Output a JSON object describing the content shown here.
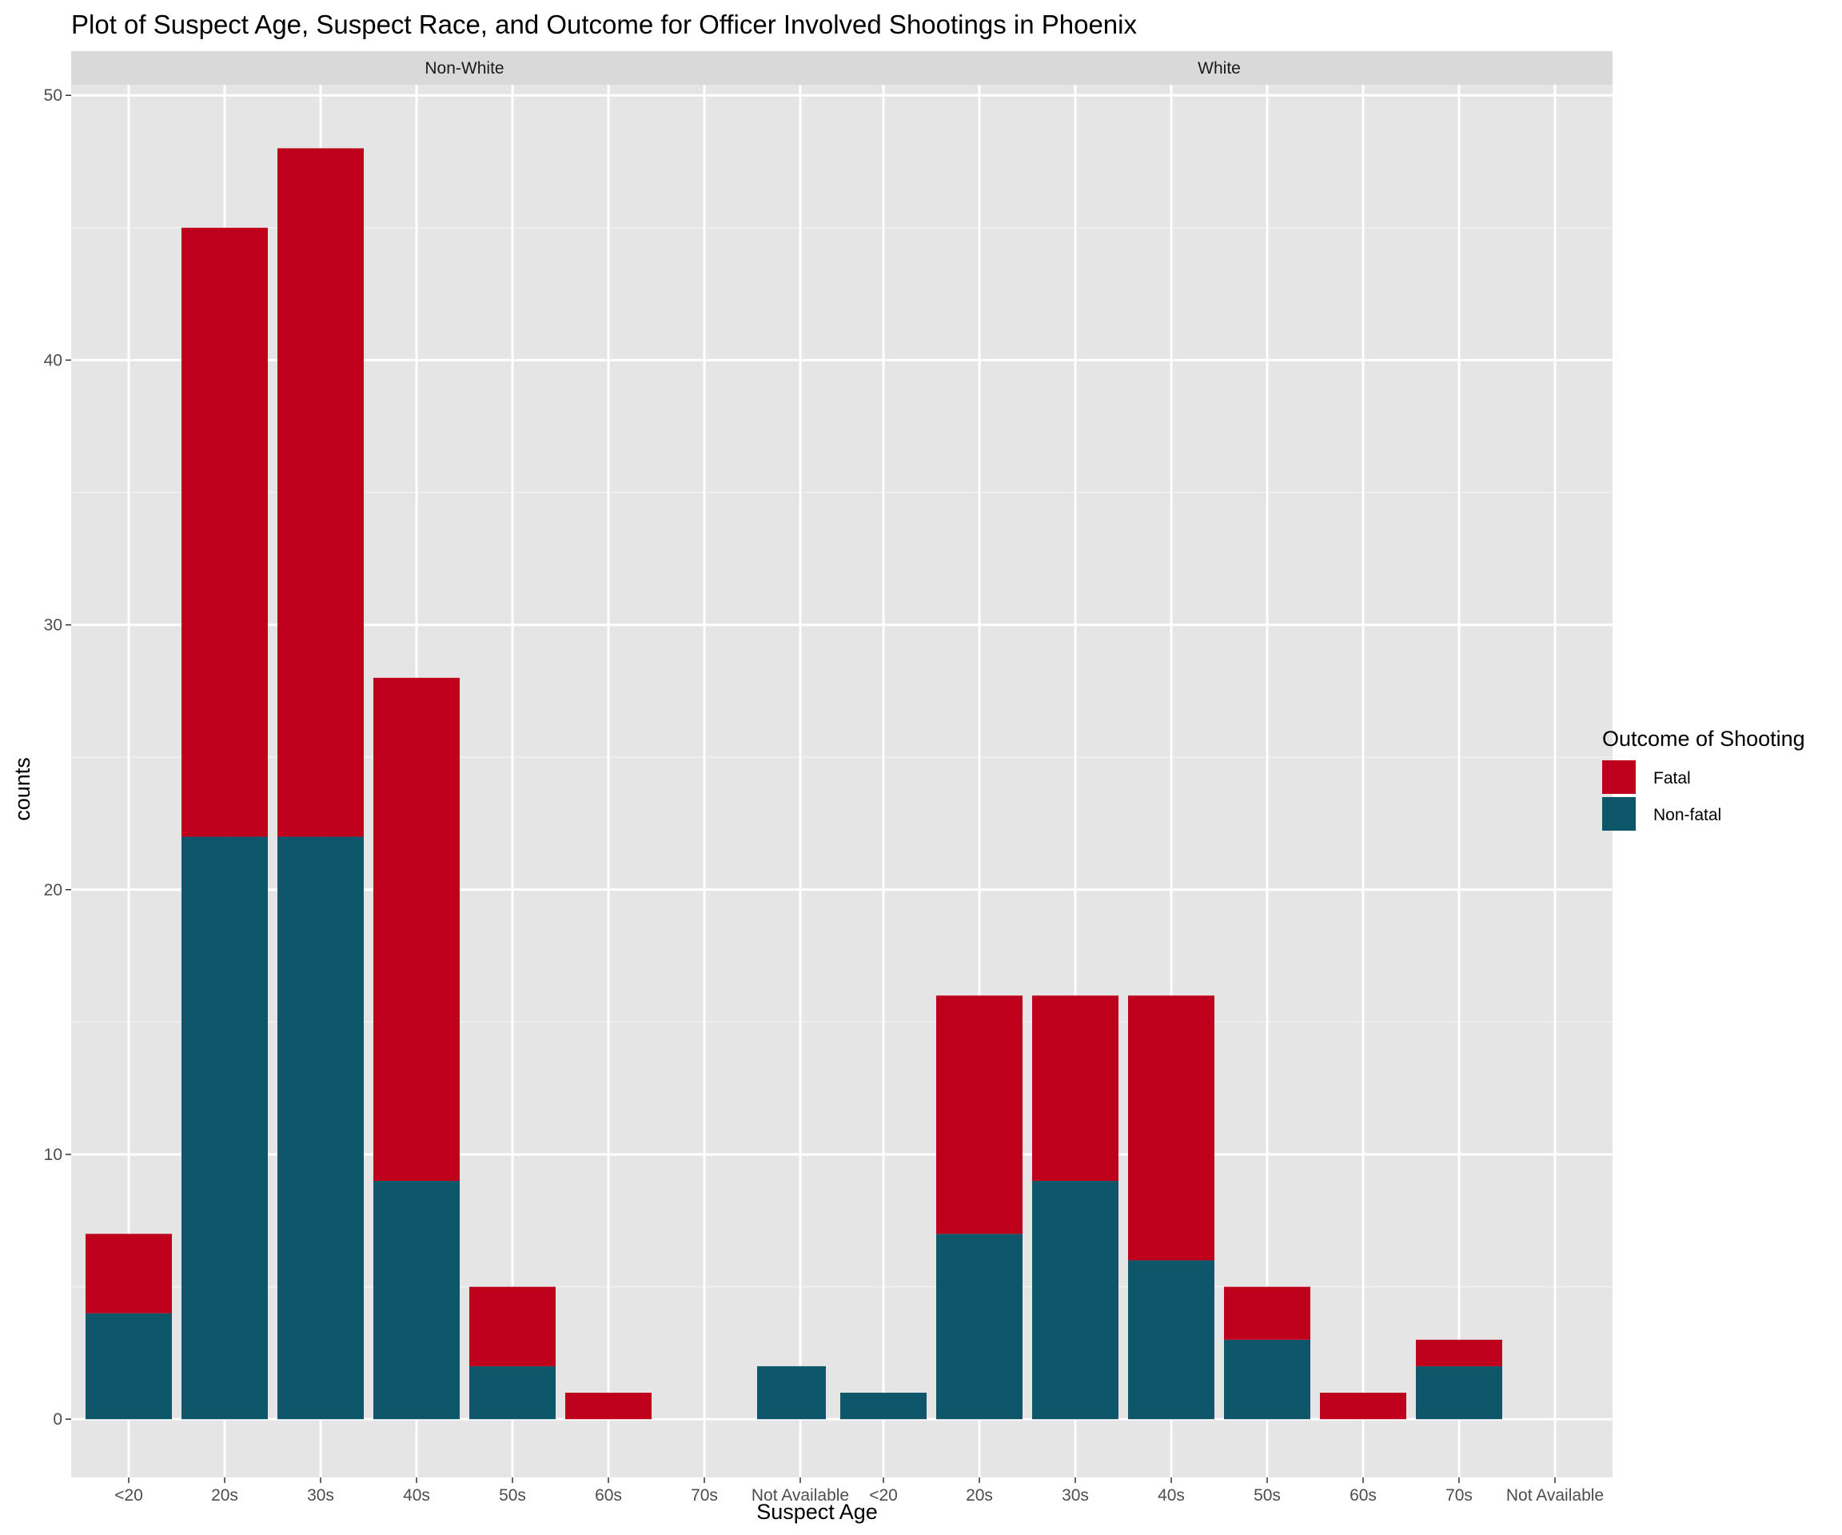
{
  "chart_data": {
    "type": "bar",
    "stacked": true,
    "title": "Plot of Suspect Age, Suspect Race, and Outcome for Officer Involved Shootings in Phoenix",
    "xlabel": "Suspect Age",
    "ylabel": "counts",
    "ylim": [
      -2.2,
      50.4
    ],
    "yticks": [
      0,
      10,
      20,
      30,
      40,
      50
    ],
    "grid": true,
    "categories": [
      "<20",
      "20s",
      "30s",
      "40s",
      "50s",
      "60s",
      "70s",
      "Not Available"
    ],
    "legend": {
      "title": "Outcome of Shooting",
      "position": "right",
      "entries": [
        {
          "label": "Fatal",
          "color": "#BE001C"
        },
        {
          "label": "Non-fatal",
          "color": "#0E566A"
        }
      ]
    },
    "facets": [
      {
        "label": "Non-White",
        "series": [
          {
            "name": "Non-fatal",
            "values": [
              4,
              22,
              22,
              9,
              2,
              0,
              0,
              2
            ]
          },
          {
            "name": "Fatal",
            "values": [
              3,
              23,
              26,
              19,
              3,
              1,
              0,
              0
            ]
          }
        ]
      },
      {
        "label": "White",
        "series": [
          {
            "name": "Non-fatal",
            "values": [
              1,
              7,
              9,
              6,
              3,
              0,
              2,
              0
            ]
          },
          {
            "name": "Fatal",
            "values": [
              0,
              9,
              7,
              10,
              2,
              1,
              1,
              0
            ]
          }
        ]
      }
    ]
  }
}
